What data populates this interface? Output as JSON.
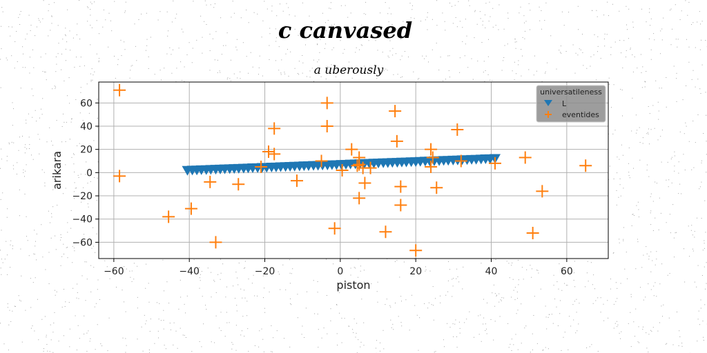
{
  "suptitle": "c canvased",
  "chart_data": {
    "type": "scatter",
    "title": "a uberously",
    "xlabel": "piston",
    "ylabel": "arikara",
    "xlim": [
      -64,
      71
    ],
    "ylim": [
      -74,
      78
    ],
    "xticks": [
      -60,
      -40,
      -20,
      0,
      20,
      40,
      60
    ],
    "yticks": [
      -60,
      -40,
      -20,
      0,
      20,
      40,
      60
    ],
    "xtick_labels": [
      "−60",
      "−40",
      "−20",
      "0",
      "20",
      "40",
      "60"
    ],
    "ytick_labels": [
      "−60",
      "−40",
      "−20",
      "0",
      "20",
      "40",
      "60"
    ],
    "grid": true,
    "legend": {
      "title": "universatileness",
      "placement": "top-right"
    },
    "series": [
      {
        "name": "L",
        "marker": "triangle-down",
        "color": "#1f77b4",
        "x": [
          -40.5,
          -39.2,
          -38,
          -36.8,
          -35.5,
          -34.3,
          -33,
          -31.8,
          -30.6,
          -29.3,
          -28.1,
          -26.9,
          -25.6,
          -24.4,
          -23.2,
          -21.9,
          -20.7,
          -19.5,
          -18.2,
          -17,
          -15.8,
          -14.5,
          -13.3,
          -12.1,
          -10.8,
          -9.6,
          -8.4,
          -7.1,
          -5.9,
          -4.7,
          -3.4,
          -2.2,
          -1,
          0.3,
          1.5,
          2.7,
          4,
          5.2,
          6.4,
          7.7,
          8.9,
          10.1,
          11.4,
          12.6,
          13.8,
          15.1,
          16.3,
          17.5,
          18.8,
          20,
          21.2,
          22.5,
          23.7,
          24.9,
          26.2,
          27.4,
          28.6,
          29.9,
          31.1,
          32.3,
          33.6,
          34.8,
          36,
          37.3,
          38.5,
          39.7,
          41
        ],
        "y": [
          2,
          2.2,
          2.3,
          2.5,
          2.6,
          2.8,
          2.9,
          3.1,
          3.2,
          3.4,
          3.5,
          3.7,
          3.8,
          4,
          4.2,
          4.3,
          4.5,
          4.6,
          4.8,
          4.9,
          5.1,
          5.2,
          5.4,
          5.5,
          5.7,
          5.9,
          6,
          6.2,
          6.3,
          6.5,
          6.6,
          6.8,
          6.9,
          7.1,
          7.2,
          7.4,
          7.5,
          7.7,
          7.9,
          8,
          8.2,
          8.3,
          8.5,
          8.6,
          8.8,
          8.9,
          9.1,
          9.2,
          9.4,
          9.5,
          9.7,
          9.9,
          10,
          10.2,
          10.3,
          10.5,
          10.6,
          10.8,
          10.9,
          11.1,
          11.2,
          11.4,
          11.5,
          11.7,
          11.9,
          12,
          12.2
        ]
      },
      {
        "name": "eventides",
        "marker": "plus",
        "color": "#ff7f0e",
        "x": [
          -58.5,
          -58.5,
          -45.5,
          -39.5,
          -33,
          -27,
          -34.5,
          -21,
          -19,
          -17.5,
          -17.5,
          -11.5,
          -5,
          -3.5,
          -3.5,
          -1.5,
          0.5,
          3,
          4.5,
          5,
          5,
          5,
          6,
          6.5,
          8,
          12,
          14.5,
          15,
          16,
          16,
          20,
          24,
          24,
          24.5,
          25.5,
          31,
          32,
          41,
          49,
          51,
          53.5,
          65
        ],
        "y": [
          71,
          -3,
          -38,
          -31,
          -60,
          -10,
          -8,
          5,
          18,
          38,
          16,
          -7,
          10,
          60,
          40,
          -48,
          2,
          20,
          6,
          13,
          7,
          -22,
          4,
          -9,
          4,
          -51,
          53,
          27,
          -12,
          -28,
          -67,
          20,
          5,
          13,
          -13,
          37,
          10,
          8,
          13,
          -52,
          -16,
          6
        ]
      }
    ]
  }
}
